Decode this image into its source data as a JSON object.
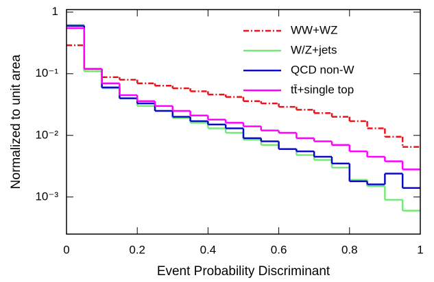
{
  "chart_data": {
    "type": "histogram",
    "xlabel": "Event Probability Discriminant",
    "ylabel": "Normalized to unit area",
    "bins": [
      0,
      0.05,
      0.1,
      0.15,
      0.2,
      0.25,
      0.3,
      0.35,
      0.4,
      0.45,
      0.5,
      0.55,
      0.6,
      0.65,
      0.7,
      0.75,
      0.8,
      0.85,
      0.9,
      0.95,
      1
    ],
    "xlim": [
      0,
      1
    ],
    "xticks": [
      0,
      0.2,
      0.4,
      0.6,
      0.8,
      1
    ],
    "yscale": "log",
    "ylim": [
      0.00025,
      1.1
    ],
    "yticks": [
      1,
      {
        "value": 0.1,
        "label": "10⁻¹"
      },
      {
        "value": 0.01,
        "label": "10⁻²"
      },
      {
        "value": 0.001,
        "label": "10⁻³"
      }
    ],
    "legend": "upper right",
    "series": [
      {
        "name": "WW+WZ",
        "color": "#e8141c",
        "dash": "dashdot",
        "values": [
          0.29,
          0.11,
          0.088,
          0.08,
          0.07,
          0.064,
          0.058,
          0.052,
          0.046,
          0.042,
          0.036,
          0.033,
          0.029,
          0.026,
          0.023,
          0.02,
          0.017,
          0.013,
          0.0095,
          0.0065
        ]
      },
      {
        "name": "W/Z+jets",
        "color": "#78e878",
        "dash": "solid",
        "values": [
          0.62,
          0.11,
          0.058,
          0.04,
          0.03,
          0.025,
          0.019,
          0.016,
          0.013,
          0.011,
          0.0085,
          0.007,
          0.006,
          0.0048,
          0.004,
          0.003,
          0.0019,
          0.0015,
          0.0009,
          0.0006
        ]
      },
      {
        "name": "QCD non-W",
        "color": "#0a0ac8",
        "dash": "solid",
        "values": [
          0.6,
          0.12,
          0.06,
          0.04,
          0.033,
          0.025,
          0.02,
          0.017,
          0.015,
          0.013,
          0.009,
          0.008,
          0.006,
          0.0055,
          0.0045,
          0.0035,
          0.0018,
          0.0016,
          0.0024,
          0.0014
        ]
      },
      {
        "name": "tt̄+single top",
        "color": "#ff00ff",
        "dash": "solid",
        "values": [
          0.55,
          0.12,
          0.07,
          0.045,
          0.036,
          0.03,
          0.025,
          0.021,
          0.018,
          0.016,
          0.014,
          0.012,
          0.011,
          0.009,
          0.008,
          0.007,
          0.0055,
          0.0045,
          0.0038,
          0.0028
        ]
      }
    ]
  }
}
